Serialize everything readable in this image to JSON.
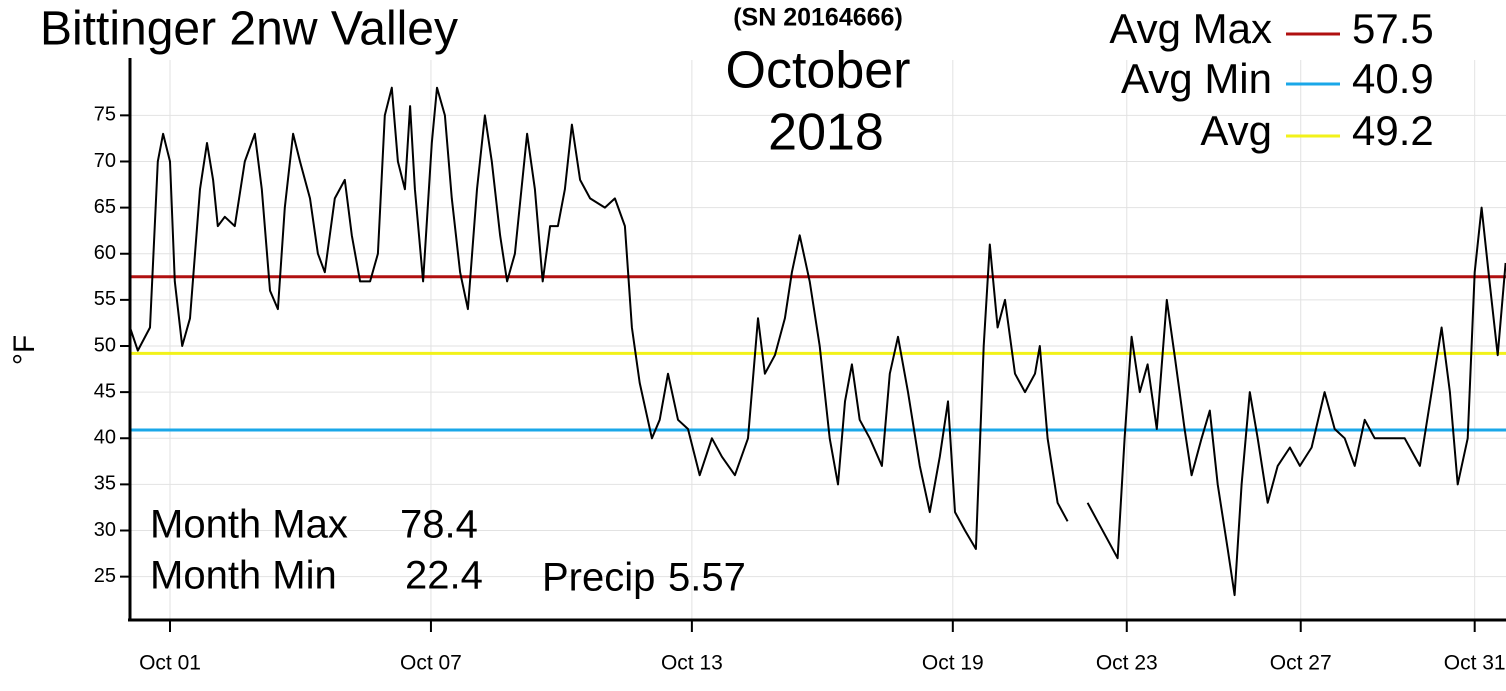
{
  "chart_data": {
    "type": "line",
    "title": "Bittinger 2nw Valley",
    "subtitle": "(SN 20164666)",
    "month": "October",
    "year": "2018",
    "y_label": "°F",
    "x": [
      0.08,
      0.26,
      0.54,
      0.72,
      0.84,
      1.0,
      1.11,
      1.28,
      1.46,
      1.69,
      1.85,
      1.99,
      2.1,
      2.26,
      2.49,
      2.72,
      2.95,
      3.11,
      3.3,
      3.48,
      3.64,
      3.83,
      3.99,
      4.22,
      4.4,
      4.56,
      4.79,
      5.02,
      5.18,
      5.37,
      5.6,
      5.78,
      5.94,
      6.1,
      6.24,
      6.4,
      6.52,
      6.63,
      6.82,
      7.02,
      7.14,
      7.32,
      7.48,
      7.67,
      7.85,
      8.06,
      8.24,
      8.4,
      8.59,
      8.75,
      8.93,
      9.21,
      9.39,
      9.57,
      9.74,
      9.92,
      10.08,
      10.24,
      10.43,
      10.66,
      11.0,
      11.23,
      11.46,
      11.62,
      11.8,
      12.08,
      12.26,
      12.45,
      12.68,
      12.91,
      13.18,
      13.46,
      13.69,
      13.99,
      14.29,
      14.52,
      14.68,
      14.91,
      15.14,
      15.3,
      15.48,
      15.71,
      15.94,
      16.17,
      16.36,
      16.52,
      16.68,
      16.86,
      17.09,
      17.37,
      17.55,
      17.74,
      17.97,
      18.24,
      18.47,
      18.7,
      18.89,
      19.05,
      19.28,
      19.53,
      19.71,
      19.85,
      20.03,
      20.2,
      20.43,
      20.66,
      20.89,
      21.0,
      21.18,
      21.41,
      21.64,
      21.87,
      22.1,
      22.33,
      22.56,
      22.79,
      22.95,
      23.11,
      23.3,
      23.48,
      23.69,
      23.92,
      24.1,
      24.33,
      24.49,
      24.72,
      24.91,
      25.09,
      25.32,
      25.48,
      25.64,
      25.83,
      26.01,
      26.24,
      26.47,
      26.75,
      26.98,
      27.25,
      27.55,
      27.78,
      28.01,
      28.24,
      28.47,
      28.7,
      29.05,
      29.39,
      29.74,
      30.01,
      30.24,
      30.43,
      30.61,
      30.84,
      31.0,
      31.16,
      31.34,
      31.53,
      31.71
    ],
    "series": [
      {
        "color": "#000000",
        "values": [
          52,
          49.5,
          52,
          70,
          73,
          70,
          57,
          50,
          53,
          67,
          72,
          68,
          63,
          64,
          63,
          70,
          73,
          67,
          56,
          54,
          65,
          73,
          70,
          66,
          60,
          58,
          66,
          68,
          62,
          57,
          57,
          60,
          75,
          78,
          70,
          67,
          76,
          67,
          57,
          72,
          78,
          75,
          66,
          58,
          54,
          67,
          75,
          70,
          62,
          57,
          60,
          73,
          67,
          57,
          63,
          63,
          67,
          74,
          68,
          66,
          65,
          66,
          63,
          52,
          46,
          40,
          42,
          47,
          42,
          41,
          36,
          40,
          38,
          36,
          40,
          53,
          47,
          49,
          53,
          58,
          62,
          57,
          50,
          40,
          35,
          44,
          48,
          42,
          40,
          37,
          47,
          51,
          45,
          37,
          32,
          38,
          44,
          32,
          30,
          28,
          50,
          61,
          52,
          55,
          47,
          45,
          47,
          50,
          40,
          33,
          31,
          null,
          33,
          31,
          29,
          27,
          40,
          51,
          45,
          48,
          41,
          55,
          49,
          41,
          36,
          40,
          43,
          35,
          28,
          23,
          35,
          45,
          40,
          33,
          37,
          39,
          37,
          39,
          45,
          41,
          40,
          37,
          42,
          40,
          40,
          40,
          37,
          45,
          52,
          45,
          35,
          40,
          58,
          65,
          57,
          49,
          59
        ]
      }
    ],
    "reference_lines": [
      {
        "name": "Avg Max",
        "value": 57.5,
        "color": "#b01010"
      },
      {
        "name": "Avg Min",
        "value": 40.9,
        "color": "#1aa7e8"
      },
      {
        "name": "Avg",
        "value": 49.2,
        "color": "#f2f21a"
      }
    ],
    "stats": [
      {
        "label": "Month Max",
        "value": 78.4
      },
      {
        "label": "Month Min",
        "value": 22.4
      },
      {
        "label": "Precip",
        "value": 5.57
      }
    ],
    "xlim": [
      0.08,
      31.72
    ],
    "ylim": [
      20.3,
      81
    ],
    "xticks": [
      {
        "value": 1,
        "label": "Oct 01"
      },
      {
        "value": 7,
        "label": "Oct 07"
      },
      {
        "value": 13,
        "label": "Oct 13"
      },
      {
        "value": 19,
        "label": "Oct 19"
      },
      {
        "value": 23,
        "label": "Oct 23"
      },
      {
        "value": 27,
        "label": "Oct 27"
      },
      {
        "value": 31,
        "label": "Oct 31"
      }
    ],
    "yticks": [
      25,
      30,
      35,
      40,
      45,
      50,
      55,
      60,
      65,
      70,
      75
    ],
    "grid": true
  }
}
